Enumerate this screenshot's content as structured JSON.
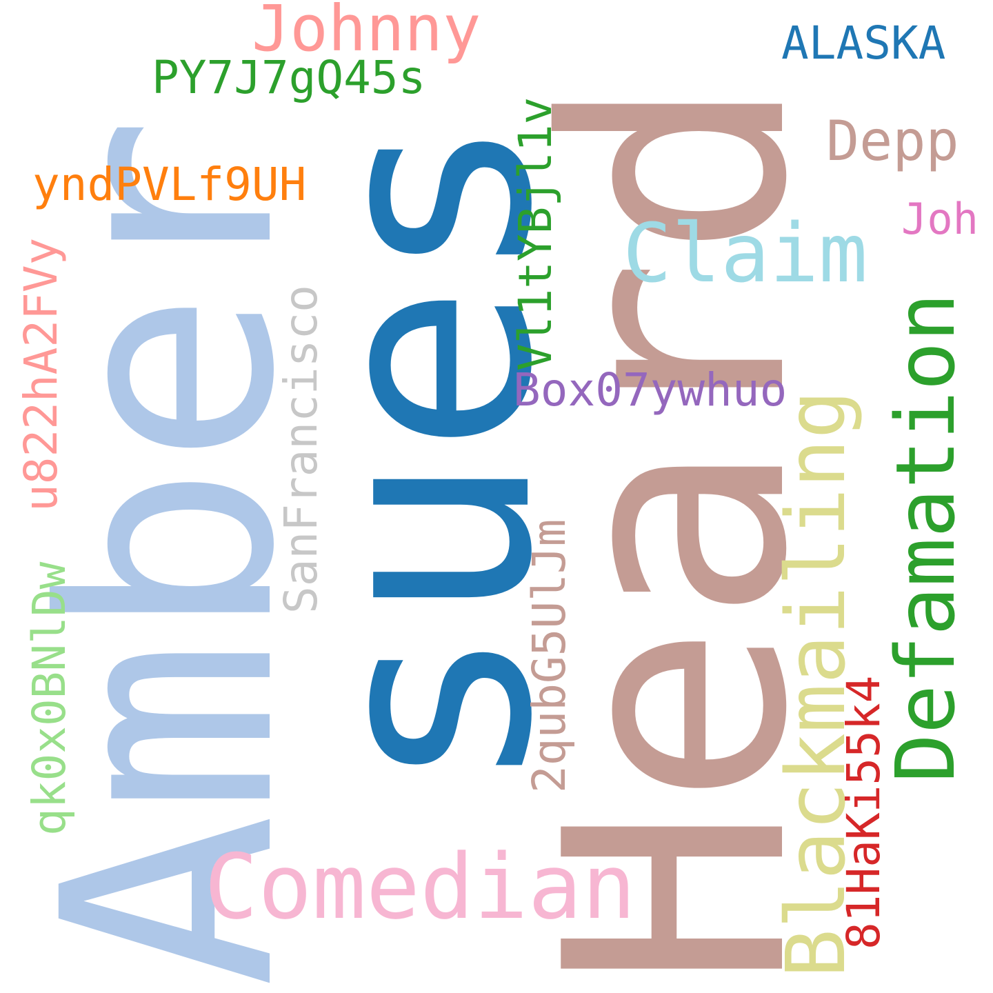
{
  "words": {
    "amber": {
      "text": "Amber",
      "color": "#aec7e8"
    },
    "sues": {
      "text": "sues",
      "color": "#1f77b4"
    },
    "heard": {
      "text": "Heard",
      "color": "#c49c94"
    },
    "johnny": {
      "text": "Johnny",
      "color": "#ff9896"
    },
    "alaska": {
      "text": "ALASKA",
      "color": "#1f77b4"
    },
    "py7": {
      "text": "PY7J7gQ45s",
      "color": "#2ca02c"
    },
    "depp": {
      "text": "Depp",
      "color": "#c49c94"
    },
    "ynd": {
      "text": "yndPVLf9UH",
      "color": "#ff7f0e"
    },
    "joh": {
      "text": "Joh",
      "color": "#e377c2"
    },
    "claim": {
      "text": "Claim",
      "color": "#9edae5"
    },
    "vl1": {
      "text": "Vl1tYBjl1v",
      "color": "#2ca02c"
    },
    "u822": {
      "text": "u822hA2FVy",
      "color": "#ff9896"
    },
    "sanfrancisco": {
      "text": "SanFrancisco",
      "color": "#c7c7c7"
    },
    "box": {
      "text": "Box07ywhuo",
      "color": "#9467bd"
    },
    "blackmailing": {
      "text": "Blackmailing",
      "color": "#dbdb8d"
    },
    "defamation": {
      "text": "Defamation",
      "color": "#2ca02c"
    },
    "qubg": {
      "text": "2qubG5UlJm",
      "color": "#c49c94"
    },
    "qk0": {
      "text": "qk0x0BNlDw",
      "color": "#98df8a"
    },
    "hak": {
      "text": "81HaKi55k4",
      "color": "#d62728"
    },
    "comedian": {
      "text": "Comedian",
      "color": "#f7b6d2"
    }
  }
}
